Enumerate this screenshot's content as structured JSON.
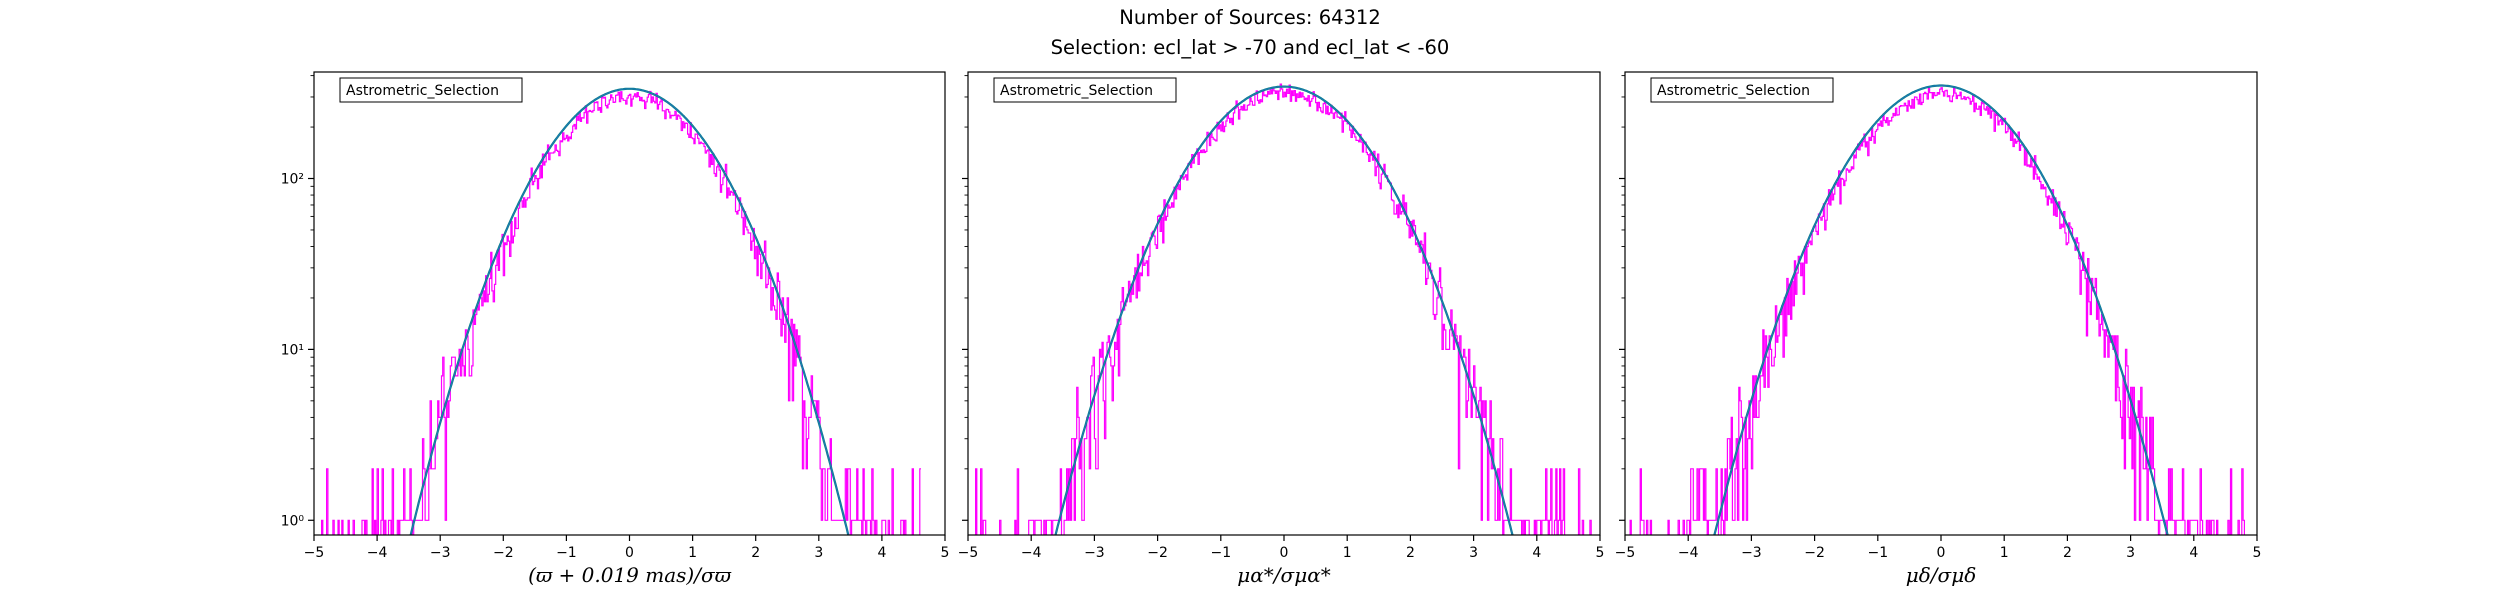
{
  "figure": {
    "title_line1": "Number of Sources: 64312",
    "title_line2": "Selection: ecl_lat > -70 and ecl_lat < -60"
  },
  "colors": {
    "histogram": "#ff00ff",
    "model_outer": "#008080",
    "model_inner": "#1f77b4",
    "axes": "#000000"
  },
  "chart_data": [
    {
      "type": "line",
      "legend_label": "Astrometric_Selection",
      "xlabel": "(ϖ + 0.019 mas)/σϖ",
      "xlim": [
        -5,
        5
      ],
      "ylim": [
        0.82,
        420
      ],
      "yscale": "log",
      "x_ticks": [
        -5,
        -4,
        -3,
        -2,
        -1,
        0,
        1,
        2,
        3,
        4,
        5
      ],
      "y_ticks": [
        1,
        10,
        100
      ],
      "y_tick_labels": [
        "10⁰",
        "10¹",
        "10²"
      ],
      "show_y_tick_labels": true,
      "series": [
        {
          "kind": "histogram",
          "x_range": [
            -4.9,
            4.6
          ],
          "peak": 300,
          "sigma": 1.0,
          "floor_count": 1
        },
        {
          "kind": "gaussian_model",
          "x_range": [
            -3.7,
            3.7
          ],
          "peak": 335,
          "sigma": 1.0
        }
      ]
    },
    {
      "type": "line",
      "legend_label": "Astrometric_Selection",
      "xlabel": "μα*/σμα*",
      "xlim": [
        -5,
        5
      ],
      "ylim": [
        0.82,
        420
      ],
      "yscale": "log",
      "x_ticks": [
        -5,
        -4,
        -3,
        -2,
        -1,
        0,
        1,
        2,
        3,
        4,
        5
      ],
      "y_ticks": [
        1,
        10,
        100
      ],
      "y_tick_labels": [
        "10⁰",
        "10¹",
        "10²"
      ],
      "show_y_tick_labels": false,
      "series": [
        {
          "kind": "histogram",
          "x_range": [
            -4.9,
            4.9
          ],
          "peak": 320,
          "sigma": 1.04,
          "floor_count": 1
        },
        {
          "kind": "gaussian_model",
          "x_range": [
            -3.7,
            3.8
          ],
          "peak": 345,
          "sigma": 1.04
        }
      ]
    },
    {
      "type": "line",
      "legend_label": "Astrometric_Selection",
      "xlabel": "μδ/σμδ",
      "xlim": [
        -5,
        5
      ],
      "ylim": [
        0.82,
        420
      ],
      "yscale": "log",
      "x_ticks": [
        -5,
        -4,
        -3,
        -2,
        -1,
        0,
        1,
        2,
        3,
        4,
        5
      ],
      "y_ticks": [
        1,
        10,
        100
      ],
      "y_tick_labels": [
        "10⁰",
        "10¹",
        "10²"
      ],
      "show_y_tick_labels": false,
      "series": [
        {
          "kind": "histogram",
          "x_range": [
            -5.0,
            4.8
          ],
          "peak": 315,
          "sigma": 1.03,
          "floor_count": 1
        },
        {
          "kind": "gaussian_model",
          "x_range": [
            -3.7,
            3.7
          ],
          "peak": 350,
          "sigma": 1.03
        }
      ]
    }
  ]
}
